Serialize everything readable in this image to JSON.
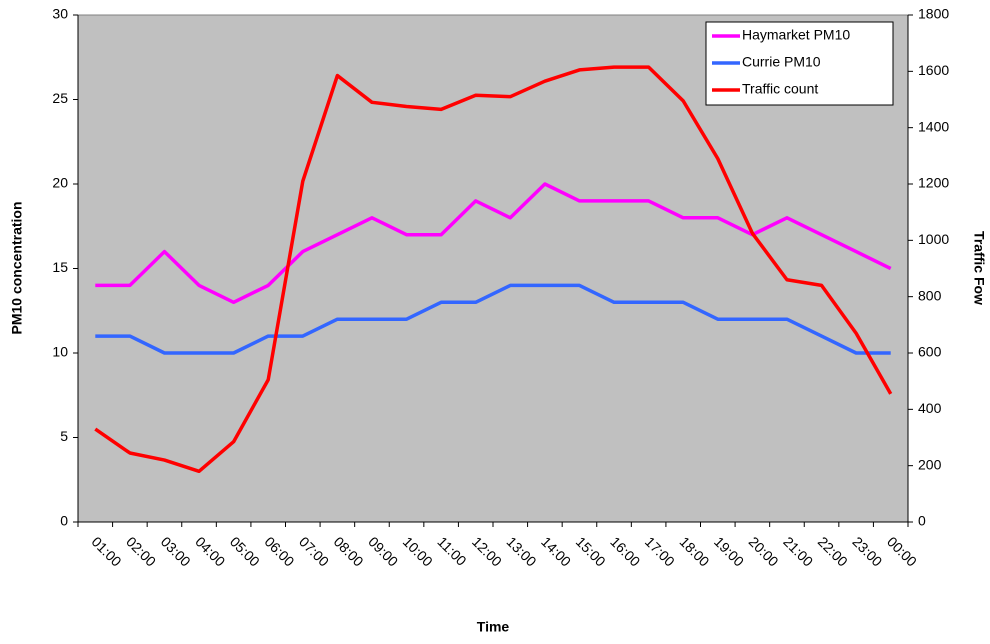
{
  "chart_data": {
    "type": "line",
    "x_label": "Time",
    "y_label": "PM10 concentration",
    "y2_label": "Traffic Fow",
    "categories": [
      "01:00",
      "02:00",
      "03:00",
      "04:00",
      "05:00",
      "06:00",
      "07:00",
      "08:00",
      "09:00",
      "10:00",
      "11:00",
      "12:00",
      "13:00",
      "14:00",
      "15:00",
      "16:00",
      "17:00",
      "18:00",
      "19:00",
      "20:00",
      "21:00",
      "22:00",
      "23:00",
      "00:00"
    ],
    "series": [
      {
        "name": "Haymarket PM10",
        "color": "#ff00ff",
        "values": [
          14,
          14,
          16,
          14,
          13,
          14,
          16,
          17,
          18,
          17,
          17,
          19,
          18,
          20,
          19,
          19,
          19,
          18,
          18,
          17,
          18,
          17,
          16,
          15
        ]
      },
      {
        "name": "Currie PM10",
        "color": "#3366ff",
        "values": [
          11,
          11,
          10,
          10,
          10,
          11,
          11,
          12,
          12,
          12,
          13,
          13,
          14,
          14,
          14,
          13,
          13,
          13,
          12,
          12,
          12,
          11,
          10,
          10
        ]
      },
      {
        "name": "Traffic count",
        "color": "#ff0000",
        "axis": "y2",
        "values": [
          330,
          245,
          220,
          180,
          285,
          505,
          1210,
          1585,
          1490,
          1475,
          1465,
          1515,
          1510,
          1565,
          1605,
          1615,
          1615,
          1495,
          1290,
          1025,
          860,
          840,
          670,
          455
        ]
      }
    ],
    "ylim": [
      0,
      30
    ],
    "yticks": [
      0,
      5,
      10,
      15,
      20,
      25,
      30
    ],
    "y2lim": [
      0,
      1800
    ],
    "y2ticks": [
      0,
      200,
      400,
      600,
      800,
      1000,
      1200,
      1400,
      1600,
      1800
    ],
    "legend": "top-right",
    "plot_background": "#c0c0c0"
  }
}
